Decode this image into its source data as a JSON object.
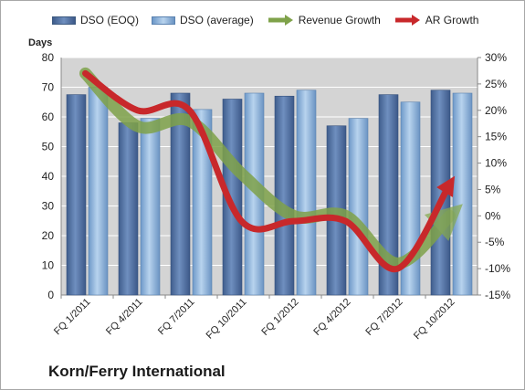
{
  "chart_data": {
    "type": "bar",
    "title": "",
    "company": "Korn/Ferry International",
    "ylabel": "Days",
    "ylim": [
      0,
      80
    ],
    "y2lim": [
      -15,
      30
    ],
    "yticks": [
      "0",
      "10",
      "20",
      "30",
      "40",
      "50",
      "60",
      "70",
      "80"
    ],
    "y2ticks": [
      "-15%",
      "-10%",
      "-5%",
      "0%",
      "5%",
      "10%",
      "15%",
      "20%",
      "25%",
      "30%"
    ],
    "categories": [
      "FQ 1/2011",
      "FQ 4/2011",
      "FQ 7/2011",
      "FQ 10/2011",
      "FQ 1/2012",
      "FQ 4/2012",
      "FQ 7/2012",
      "FQ 10/2012"
    ],
    "series": [
      {
        "name": "DSO (EOQ)",
        "type": "bar",
        "axis": "left",
        "values": [
          67.5,
          58,
          68,
          66,
          67,
          57,
          67.5,
          69
        ]
      },
      {
        "name": "DSO (average)",
        "type": "bar",
        "axis": "left",
        "values": [
          70,
          59.5,
          62.5,
          68,
          69,
          59.5,
          65,
          68
        ]
      },
      {
        "name": "Revenue Growth",
        "type": "line",
        "axis": "right",
        "values": [
          27,
          17,
          18,
          8,
          0,
          0,
          -9,
          0
        ]
      },
      {
        "name": "AR Growth",
        "type": "line",
        "axis": "right",
        "values": [
          27,
          20,
          20,
          -1,
          -1,
          -1,
          -10,
          6
        ]
      }
    ],
    "grid": true,
    "legend_position": "top",
    "colors": {
      "bar_eoq": "#4f6fa0",
      "bar_avg": "#8eb3dc",
      "revenue": "#7fa24a",
      "ar": "#c8282b",
      "plot_bg": "#d4d4d4"
    }
  }
}
